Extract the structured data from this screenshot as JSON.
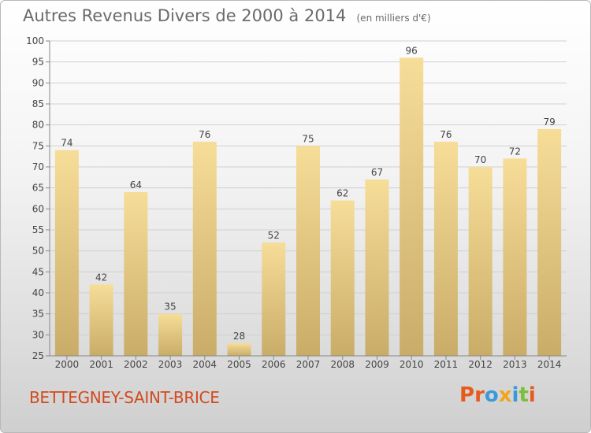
{
  "header": {
    "title": "Autres Revenus Divers de 2000 à 2014",
    "unit": "(en milliers d'€)"
  },
  "footer": {
    "city": "BETTEGNEY-SAINT-BRICE",
    "logo_text": "Proxiti",
    "logo_colors": [
      "#e85a1c",
      "#e85a1c",
      "#3a9ad9",
      "#f2a51a",
      "#3a9ad9",
      "#7cbf3a",
      "#e85a1c"
    ]
  },
  "colors": {
    "bar_light": "#f6dd98",
    "bar_dark": "#c9ac68",
    "axis": "#888888",
    "grid": "#d0d0d0",
    "text": "#444444"
  },
  "chart_data": {
    "type": "bar",
    "title": "Autres Revenus Divers de 2000 à 2014",
    "subtitle": "(en milliers d'€)",
    "xlabel": "",
    "ylabel": "",
    "categories": [
      "2000",
      "2001",
      "2002",
      "2003",
      "2004",
      "2005",
      "2006",
      "2007",
      "2008",
      "2009",
      "2010",
      "2011",
      "2012",
      "2013",
      "2014"
    ],
    "values": [
      74,
      42,
      64,
      35,
      76,
      28,
      52,
      75,
      62,
      67,
      96,
      76,
      70,
      72,
      79
    ],
    "ylim": [
      25,
      100
    ],
    "yticks": [
      25,
      30,
      35,
      40,
      45,
      50,
      55,
      60,
      65,
      70,
      75,
      80,
      85,
      90,
      95,
      100
    ],
    "grid": true,
    "legend": "none"
  }
}
